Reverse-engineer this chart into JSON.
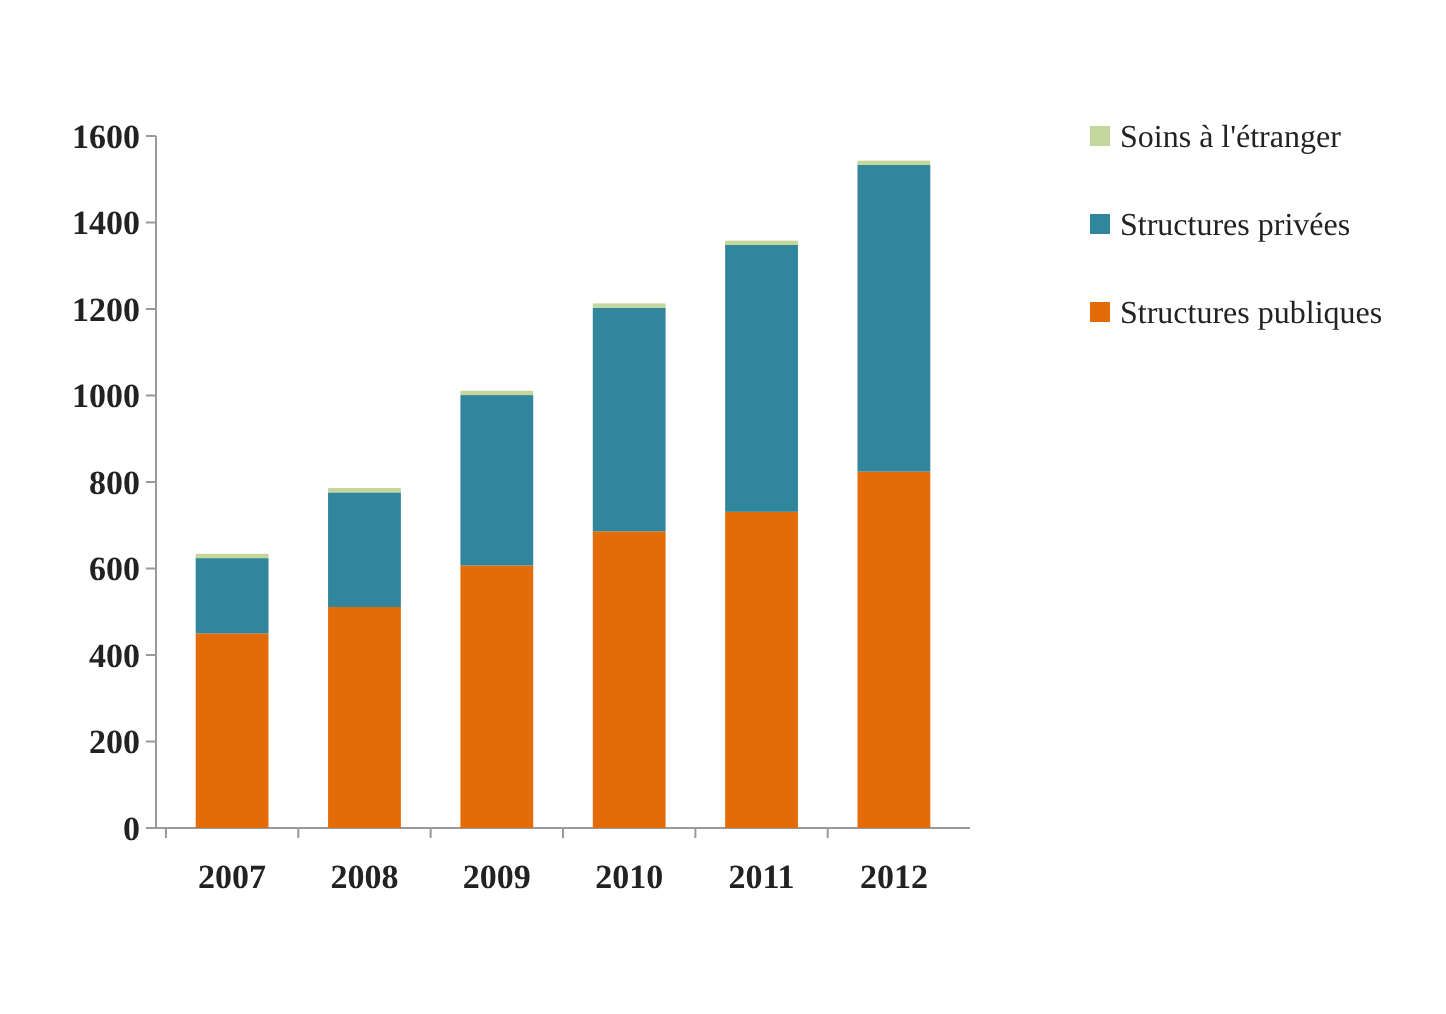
{
  "chart_data": {
    "type": "bar",
    "stacked": true,
    "categories": [
      "2007",
      "2008",
      "2009",
      "2010",
      "2011",
      "2012"
    ],
    "series": [
      {
        "name": "Structures publiques",
        "color": "#e36c09",
        "values": [
          450,
          511,
          607,
          686,
          731,
          824
        ]
      },
      {
        "name": "Structures privées",
        "color": "#31859c",
        "values": [
          174,
          265,
          394,
          517,
          617,
          709
        ]
      },
      {
        "name": "Soins à l'étranger",
        "color": "#c3d69b",
        "values": [
          10,
          10,
          10,
          10,
          10,
          10
        ]
      }
    ],
    "ylim": [
      0,
      1600
    ],
    "yticks": [
      0,
      200,
      400,
      600,
      800,
      1000,
      1200,
      1400,
      1600
    ],
    "legend": "right"
  }
}
